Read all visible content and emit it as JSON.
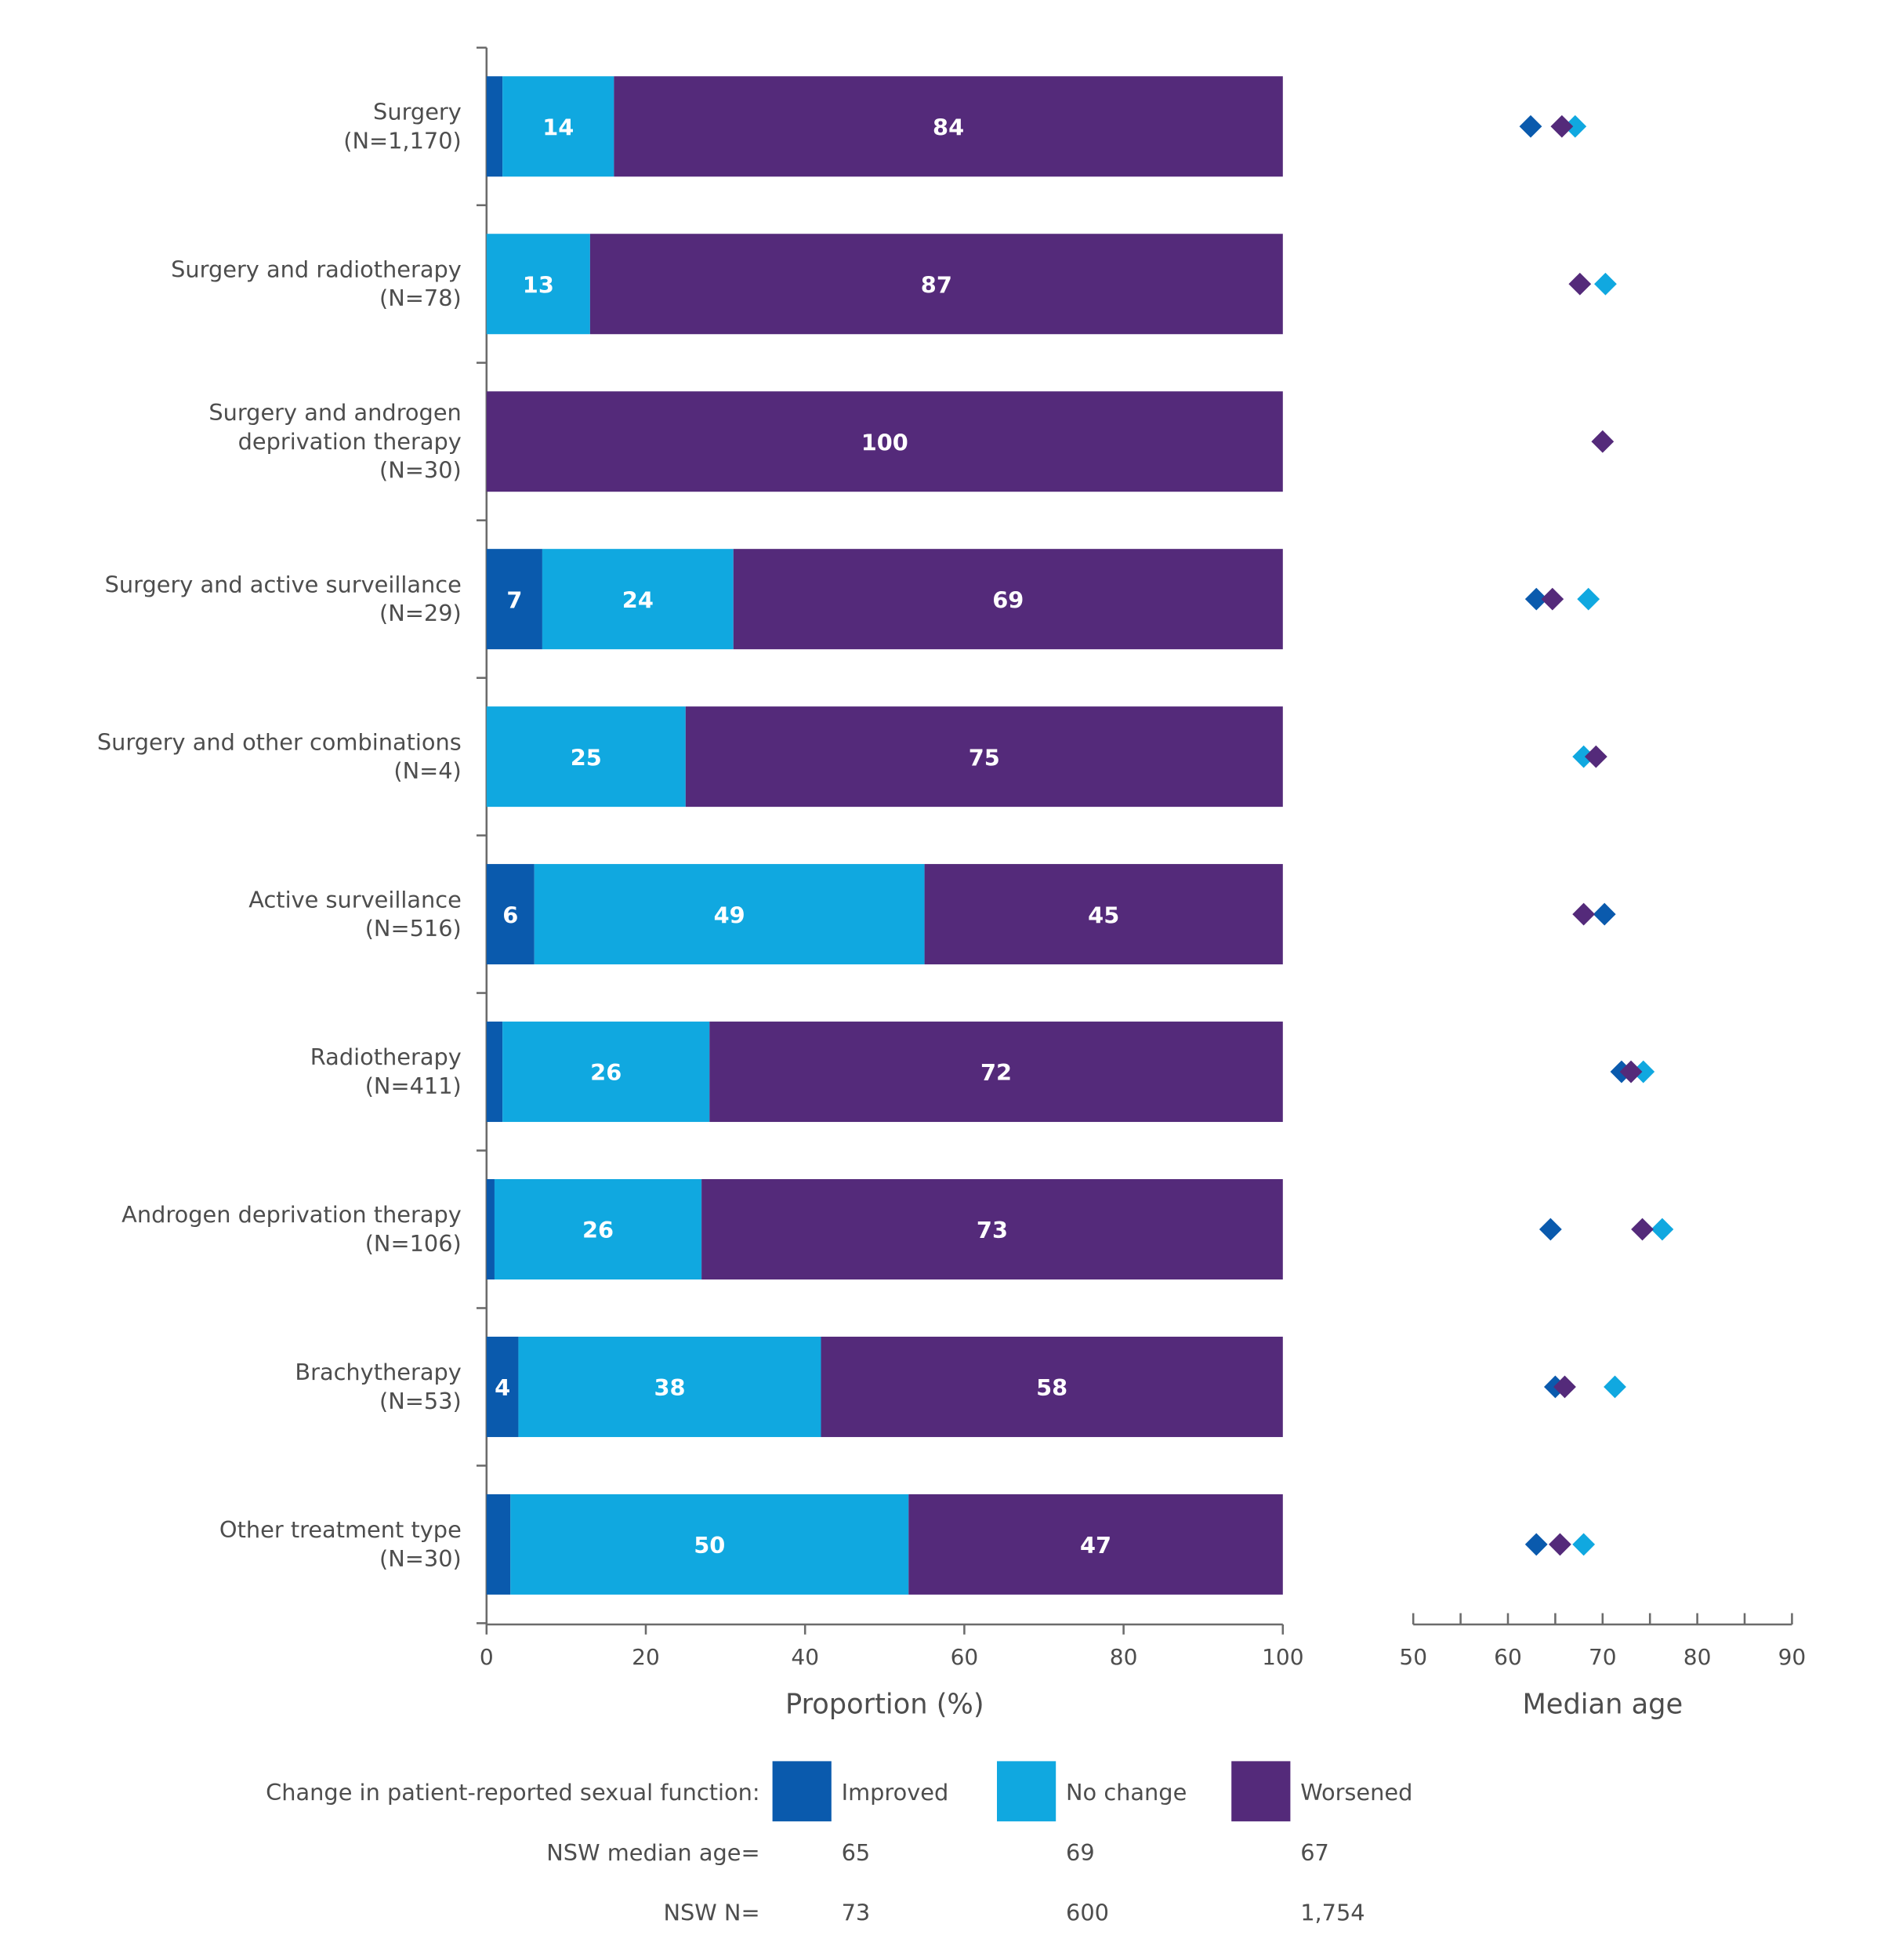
{
  "chart_data": [
    {
      "type": "bar",
      "orientation": "horizontal",
      "stacked": true,
      "categories": [
        [
          "Surgery",
          "(N=1,170)"
        ],
        [
          "Surgery and radiotherapy",
          "(N=78)"
        ],
        [
          "Surgery and androgen",
          "deprivation therapy",
          "(N=30)"
        ],
        [
          "Surgery and active surveillance",
          "(N=29)"
        ],
        [
          "Surgery and other combinations",
          "(N=4)"
        ],
        [
          "Active surveillance",
          "(N=516)"
        ],
        [
          "Radiotherapy",
          "(N=411)"
        ],
        [
          "Androgen deprivation therapy",
          "(N=106)"
        ],
        [
          "Brachytherapy",
          "(N=53)"
        ],
        [
          "Other treatment type",
          "(N=30)"
        ]
      ],
      "series": [
        {
          "name": "Improved",
          "color": "#0a5aad",
          "values": [
            2,
            0,
            0,
            7,
            0,
            6,
            2,
            1,
            4,
            3
          ],
          "labels": [
            "",
            "",
            "",
            "7",
            "",
            "6",
            "",
            "",
            "4",
            ""
          ]
        },
        {
          "name": "No change",
          "color": "#10a8e0",
          "values": [
            14,
            13,
            0,
            24,
            25,
            49,
            26,
            26,
            38,
            50
          ],
          "labels": [
            "14",
            "13",
            "",
            "24",
            "25",
            "49",
            "26",
            "26",
            "38",
            "50"
          ]
        },
        {
          "name": "Worsened",
          "color": "#542a7a",
          "values": [
            84,
            87,
            100,
            69,
            75,
            45,
            72,
            73,
            58,
            47
          ],
          "labels": [
            "84",
            "87",
            "100",
            "69",
            "75",
            "45",
            "72",
            "73",
            "58",
            "47"
          ]
        }
      ],
      "xlabel": "Proportion (%)",
      "xlim": [
        0,
        100
      ],
      "xticks": [
        "0",
        "20",
        "40",
        "60",
        "80",
        "100"
      ],
      "grid": false
    },
    {
      "type": "scatter",
      "marker": "diamond",
      "series": [
        {
          "name": "Improved",
          "color": "#0a5aad",
          "values": [
            62.4,
            null,
            null,
            63,
            null,
            70.2,
            72,
            64.5,
            65,
            63
          ]
        },
        {
          "name": "No change",
          "color": "#10a8e0",
          "values": [
            67.1,
            70.3,
            null,
            68.5,
            68,
            null,
            74.3,
            76.3,
            71.3,
            68
          ]
        },
        {
          "name": "Worsened",
          "color": "#542a7a",
          "values": [
            65.7,
            67.6,
            70,
            64.7,
            69.3,
            68,
            73,
            74.2,
            66,
            65.5
          ]
        }
      ],
      "xlabel": "Median age",
      "xlim": [
        50,
        90
      ],
      "xticks": [
        "50",
        "60",
        "70",
        "80",
        "90"
      ],
      "grid": false
    }
  ],
  "legend": {
    "title": "Change in patient-reported sexual function:",
    "placement": "bottom",
    "items": [
      {
        "label": "Improved",
        "color": "#0a5aad",
        "nsw_median_age": "65",
        "nsw_n": "73"
      },
      {
        "label": "No change",
        "color": "#10a8e0",
        "nsw_median_age": "69",
        "nsw_n": "600"
      },
      {
        "label": "Worsened",
        "color": "#542a7a",
        "nsw_median_age": "67",
        "nsw_n": "1,754"
      }
    ],
    "median_age_label": "NSW median age=",
    "n_label": "NSW N="
  }
}
